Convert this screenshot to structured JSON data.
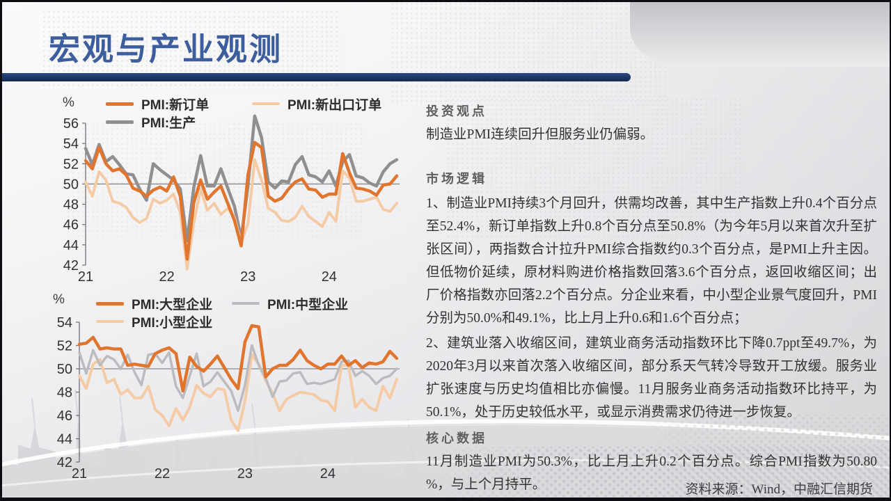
{
  "slide": {
    "title": "宏观与产业观测",
    "source": "资料来源：Wind，中融汇信期货"
  },
  "panel": {
    "investment": {
      "heading": "投资观点",
      "body": "制造业PMI连续回升但服务业仍偏弱。"
    },
    "logic": {
      "heading": "市场逻辑",
      "para1": "1、制造业PMI持续3个月回升，供需均改善，其中生产指数上升0.4个百分点至52.4%，新订单指数上升0.8个百分点至50.8%（为今年5月以来首次升至扩张区间），两指数合计拉升PMI综合指数约0.3个百分点，是PMI上升主因。但低物价延续，原材料购进价格指数回落3.6个百分点，返回收缩区间；出厂价格指数亦回落2.2个百分点。分企业来看，中小型企业景气度回升，PMI分别为50.0%和49.1%，比上月上升0.6和1.6个百分点；",
      "para2": "2、建筑业落入收缩区间，建筑业商务活动指数环比下降0.7ppt至49.7%，为2020年3月以来首次落入收缩区间，部分系天气转冷导致开工放缓。服务业扩张速度与历史均值相比亦偏慢。11月服务业商务活动指数环比持平，为50.1%，处于历史较低水平，或显示消费需求仍待进一步恢复。"
    },
    "core": {
      "heading": "核心数据",
      "body": "11月制造业PMI为50.3%，比上月上升0.2个百分点。综合PMI指数为50.80 %，与上个月持平。"
    }
  },
  "chart_data": [
    {
      "type": "line",
      "ylabel": "%",
      "ylim": [
        42,
        56
      ],
      "yticks": [
        56,
        54,
        52,
        50,
        48,
        46,
        44,
        42
      ],
      "refline": 50,
      "x_unit": "month",
      "x_year_ticks": [
        {
          "label": "21",
          "month_index": 0
        },
        {
          "label": "22",
          "month_index": 12
        },
        {
          "label": "23",
          "month_index": 24
        },
        {
          "label": "24",
          "month_index": 36
        }
      ],
      "legend_position": "top",
      "grid": false,
      "series": [
        {
          "name": "PMI:新订单",
          "color": "#E2752E",
          "width": 4.5,
          "values": [
            52.3,
            51.5,
            53.6,
            52.0,
            51.3,
            51.5,
            50.9,
            49.6,
            49.3,
            48.8,
            49.4,
            49.7,
            49.3,
            50.7,
            48.8,
            42.6,
            48.2,
            50.4,
            48.5,
            49.2,
            49.8,
            48.1,
            46.4,
            43.9,
            50.9,
            54.1,
            53.6,
            48.8,
            48.3,
            48.6,
            49.5,
            50.2,
            50.5,
            49.5,
            49.4,
            48.7,
            49.0,
            49.0,
            53.0,
            51.1,
            49.6,
            49.5,
            49.3,
            48.9,
            49.9,
            50.0,
            50.8
          ]
        },
        {
          "name": "PMI:新出口订单",
          "color": "#F5CBA6",
          "width": 4,
          "values": [
            50.2,
            48.8,
            51.2,
            50.4,
            48.3,
            48.1,
            47.7,
            46.7,
            46.2,
            46.6,
            48.5,
            48.1,
            48.4,
            49.0,
            47.2,
            41.6,
            46.2,
            49.5,
            47.4,
            48.1,
            47.0,
            47.6,
            46.7,
            44.2,
            46.1,
            52.4,
            50.4,
            47.6,
            47.2,
            46.4,
            46.3,
            46.7,
            47.8,
            46.8,
            46.3,
            45.8,
            47.2,
            46.3,
            51.3,
            50.6,
            48.3,
            48.3,
            48.5,
            48.7,
            47.5,
            47.3,
            48.1
          ]
        },
        {
          "name": "PMI:生产",
          "color": "#8F8F91",
          "width": 4.5,
          "values": [
            53.5,
            51.9,
            53.9,
            52.2,
            52.7,
            51.9,
            51.0,
            50.9,
            49.5,
            48.4,
            52.0,
            51.4,
            50.9,
            50.4,
            49.5,
            44.4,
            49.7,
            52.8,
            49.8,
            49.8,
            51.5,
            49.6,
            47.8,
            44.6,
            49.8,
            56.7,
            54.6,
            50.2,
            49.6,
            50.3,
            50.2,
            51.9,
            52.7,
            50.9,
            50.7,
            50.2,
            51.3,
            49.8,
            52.2,
            52.9,
            50.8,
            50.6,
            50.1,
            49.8,
            51.2,
            52.0,
            52.4
          ]
        }
      ]
    },
    {
      "type": "line",
      "ylabel": "%",
      "ylim": [
        42,
        54
      ],
      "yticks": [
        54,
        52,
        50,
        48,
        46,
        44,
        42
      ],
      "refline": 50,
      "x_unit": "month",
      "x_year_ticks": [
        {
          "label": "21",
          "month_index": 0
        },
        {
          "label": "22",
          "month_index": 12
        },
        {
          "label": "23",
          "month_index": 24
        },
        {
          "label": "24",
          "month_index": 36
        }
      ],
      "legend_position": "top",
      "grid": false,
      "series": [
        {
          "name": "PMI:大型企业",
          "color": "#E2752E",
          "width": 4.5,
          "values": [
            52.1,
            52.2,
            52.7,
            51.7,
            51.8,
            51.7,
            51.7,
            50.3,
            50.4,
            50.3,
            50.2,
            51.3,
            51.6,
            51.8,
            51.3,
            48.1,
            51.0,
            50.2,
            49.8,
            50.4,
            51.1,
            50.1,
            49.1,
            48.3,
            52.3,
            53.7,
            53.6,
            49.3,
            50.0,
            50.3,
            50.3,
            50.8,
            51.6,
            50.7,
            50.3,
            50.0,
            50.4,
            50.4,
            51.1,
            50.3,
            50.7,
            50.1,
            50.5,
            50.4,
            50.6,
            51.5,
            50.9
          ]
        },
        {
          "name": "PMI:中型企业",
          "color": "#BCBCC0",
          "width": 3.5,
          "values": [
            51.4,
            49.6,
            51.6,
            50.3,
            51.1,
            50.8,
            50.0,
            51.2,
            49.7,
            48.6,
            51.2,
            51.3,
            50.5,
            51.4,
            48.5,
            47.5,
            49.4,
            51.3,
            48.5,
            48.9,
            49.7,
            48.9,
            48.1,
            46.4,
            48.6,
            52.0,
            50.3,
            49.2,
            47.6,
            48.9,
            49.0,
            49.6,
            49.7,
            48.7,
            48.8,
            48.7,
            48.9,
            49.1,
            50.6,
            50.7,
            49.4,
            49.8,
            49.4,
            48.7,
            49.2,
            49.4,
            50.0
          ]
        },
        {
          "name": "PMI:小型企业",
          "color": "#F5CBA6",
          "width": 4,
          "values": [
            49.4,
            48.3,
            50.4,
            50.8,
            48.8,
            49.1,
            47.8,
            48.2,
            47.5,
            47.5,
            48.5,
            46.5,
            46.0,
            45.1,
            46.6,
            45.6,
            46.7,
            48.6,
            47.9,
            47.6,
            48.3,
            48.2,
            45.6,
            44.7,
            47.2,
            51.2,
            50.4,
            49.0,
            47.9,
            46.4,
            47.4,
            47.7,
            48.0,
            47.9,
            47.8,
            47.3,
            47.2,
            46.4,
            50.3,
            50.3,
            46.7,
            47.4,
            46.7,
            46.4,
            48.5,
            47.5,
            49.1
          ]
        }
      ]
    }
  ]
}
